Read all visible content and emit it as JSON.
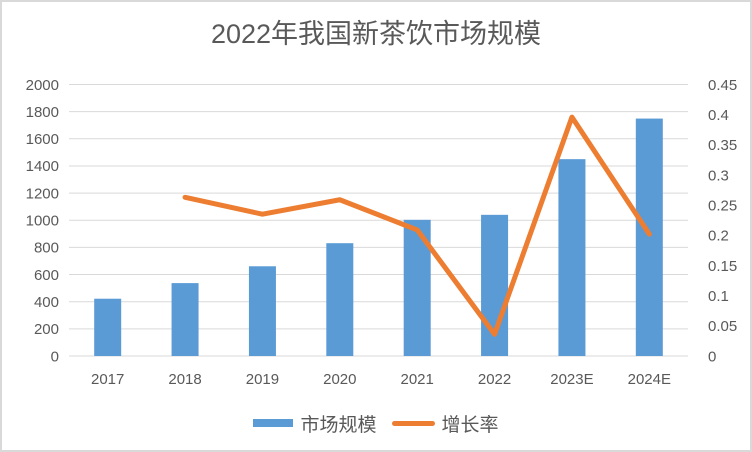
{
  "chart": {
    "title": "2022年我国新茶饮市场规模",
    "colors": {
      "bar": "#5B9BD5",
      "line": "#ED7D31",
      "grid": "#D9D9D9",
      "text": "#595959",
      "border": "#D9D9D9",
      "background": "#FFFFFF"
    },
    "legend": [
      {
        "label": "市场规模",
        "marker": "bar-swatch"
      },
      {
        "label": "增长率",
        "marker": "line-swatch"
      }
    ]
  },
  "chart_data": {
    "type": "combo (bar + line, dual y-axis)",
    "title": "2022年我国新茶饮市场规模",
    "categories": [
      "2017",
      "2018",
      "2019",
      "2020",
      "2021",
      "2022",
      "2023E",
      "2024E"
    ],
    "series": [
      {
        "name": "市场规模",
        "type": "bar",
        "y_axis": "left",
        "color": "#5B9BD5",
        "values": [
          422,
          537,
          661,
          831,
          1003,
          1040,
          1450,
          1749
        ]
      },
      {
        "name": "增长率",
        "type": "line",
        "y_axis": "right",
        "color": "#ED7D31",
        "values": [
          null,
          0.263,
          0.235,
          0.259,
          0.209,
          0.036,
          0.396,
          0.202
        ]
      }
    ],
    "left_axis": {
      "min": 0,
      "max": 2000,
      "tick_step": 200,
      "tick_labels": [
        "0",
        "200",
        "400",
        "600",
        "800",
        "1000",
        "1200",
        "1400",
        "1600",
        "1800",
        "2000"
      ]
    },
    "right_axis": {
      "min": 0,
      "max": 0.45,
      "tick_step": 0.05,
      "tick_labels": [
        "0",
        "0.05",
        "0.1",
        "0.15",
        "0.2",
        "0.25",
        "0.3",
        "0.35",
        "0.4",
        "0.45"
      ]
    },
    "grid": "horizontal only",
    "legend_position": "bottom"
  }
}
